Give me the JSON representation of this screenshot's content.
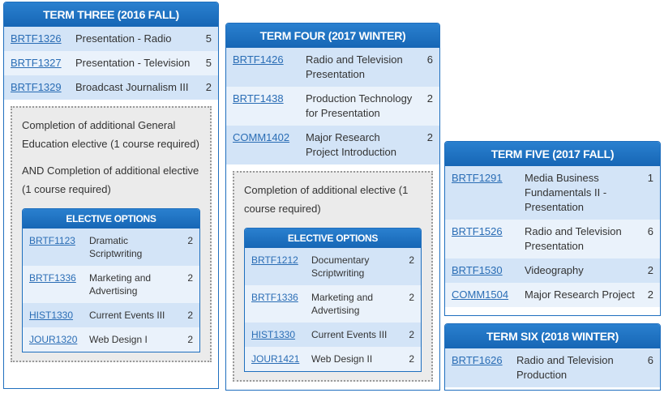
{
  "terms": [
    {
      "title": "TERM THREE (2016 FALL)",
      "courses": [
        {
          "code": "BRTF1326",
          "name": "Presentation - Radio",
          "credits": 5
        },
        {
          "code": "BRTF1327",
          "name": "Presentation - Television",
          "credits": 5
        },
        {
          "code": "BRTF1329",
          "name": "Broadcast Journalism III",
          "credits": 2
        }
      ],
      "notes": [
        "Completion of additional General Education elective (1 course required)",
        "AND Completion of additional elective (1 course required)"
      ],
      "electives_title": "ELECTIVE OPTIONS",
      "electives": [
        {
          "code": "BRTF1123",
          "name": "Dramatic Scriptwriting",
          "credits": 2
        },
        {
          "code": "BRTF1336",
          "name": "Marketing and Advertising",
          "credits": 2
        },
        {
          "code": "HIST1330",
          "name": "Current Events III",
          "credits": 2
        },
        {
          "code": "JOUR1320",
          "name": "Web Design I",
          "credits": 2
        }
      ]
    },
    {
      "title": "TERM FOUR (2017 WINTER)",
      "courses": [
        {
          "code": "BRTF1426",
          "name": "Radio and Television Presentation",
          "credits": 6
        },
        {
          "code": "BRTF1438",
          "name": "Production Technology for Presentation",
          "credits": 2
        },
        {
          "code": "COMM1402",
          "name": "Major Research Project Introduction",
          "credits": 2
        }
      ],
      "notes": [
        "Completion of additional elective (1 course required)"
      ],
      "electives_title": "ELECTIVE OPTIONS",
      "electives": [
        {
          "code": "BRTF1212",
          "name": "Documentary Scriptwriting",
          "credits": 2
        },
        {
          "code": "BRTF1336",
          "name": "Marketing and Advertising",
          "credits": 2
        },
        {
          "code": "HIST1330",
          "name": "Current Events III",
          "credits": 2
        },
        {
          "code": "JOUR1421",
          "name": "Web Design II",
          "credits": 2
        }
      ]
    },
    {
      "title": "TERM FIVE (2017 FALL)",
      "courses": [
        {
          "code": "BRTF1291",
          "name": "Media Business Fundamentals II - Presentation",
          "credits": 1
        },
        {
          "code": "BRTF1526",
          "name": "Radio and Television Presentation",
          "credits": 6
        },
        {
          "code": "BRTF1530",
          "name": "Videography",
          "credits": 2
        },
        {
          "code": "COMM1504",
          "name": "Major Research Project",
          "credits": 2
        }
      ]
    },
    {
      "title": "TERM SIX (2018 WINTER)",
      "courses": [
        {
          "code": "BRTF1626",
          "name": "Radio and Television Production",
          "credits": 6
        }
      ]
    }
  ]
}
